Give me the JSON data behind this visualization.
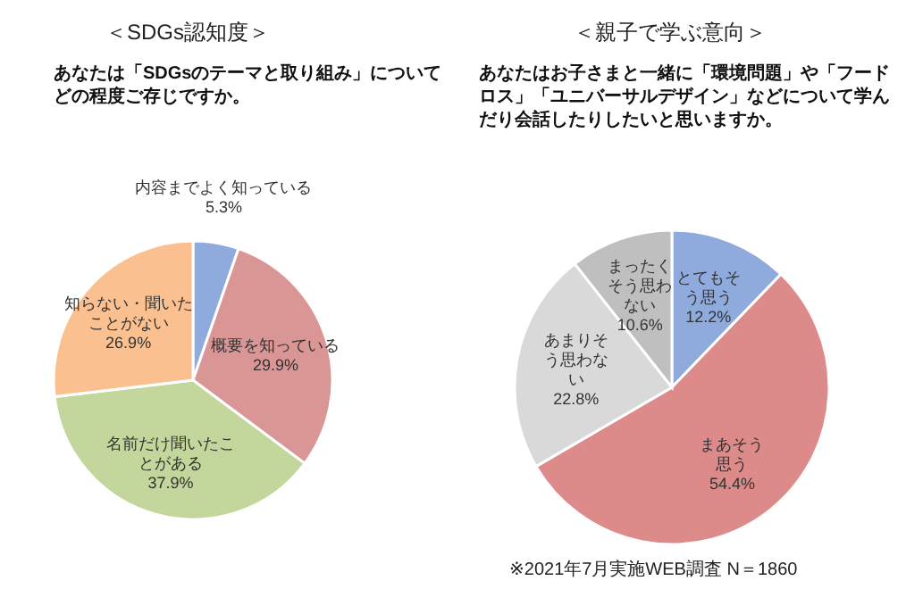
{
  "chart_data": [
    {
      "type": "pie",
      "title": "＜SDGs認知度＞",
      "subtitle": "あなたは「SDGsのテーマと取り組み」についてどの程度ご存じですか。",
      "categories": [
        "内容までよく知っている",
        "概要を知っている",
        "名前だけ聞いたことがある",
        "知らない・聞いたことがない"
      ],
      "values": [
        5.3,
        29.9,
        37.9,
        26.9
      ],
      "value_labels": [
        "5.3%",
        "29.9%",
        "37.9%",
        "26.9%"
      ],
      "colors": [
        "#8faadc",
        "#d99694",
        "#c3d69b",
        "#fac08f"
      ]
    },
    {
      "type": "pie",
      "title": "＜親子で学ぶ意向＞",
      "subtitle": "あなたはお子さまと一緒に「環境問題」や「フードロス」「ユニバーサルデザイン」などについて学んだり会話したりしたいと思いますか。",
      "categories": [
        "とてもそう思う",
        "まあそう思う",
        "あまりそう思わない",
        "まったくそう思わない"
      ],
      "values": [
        12.2,
        54.4,
        22.8,
        10.6
      ],
      "value_labels": [
        "12.2%",
        "54.4%",
        "22.8%",
        "10.6%"
      ],
      "colors": [
        "#8faadc",
        "#dd8a8a",
        "#d9d9d9",
        "#bfbfbf"
      ],
      "annotations": [
        "※2021年7月実施WEB調査 N＝1860"
      ]
    }
  ]
}
